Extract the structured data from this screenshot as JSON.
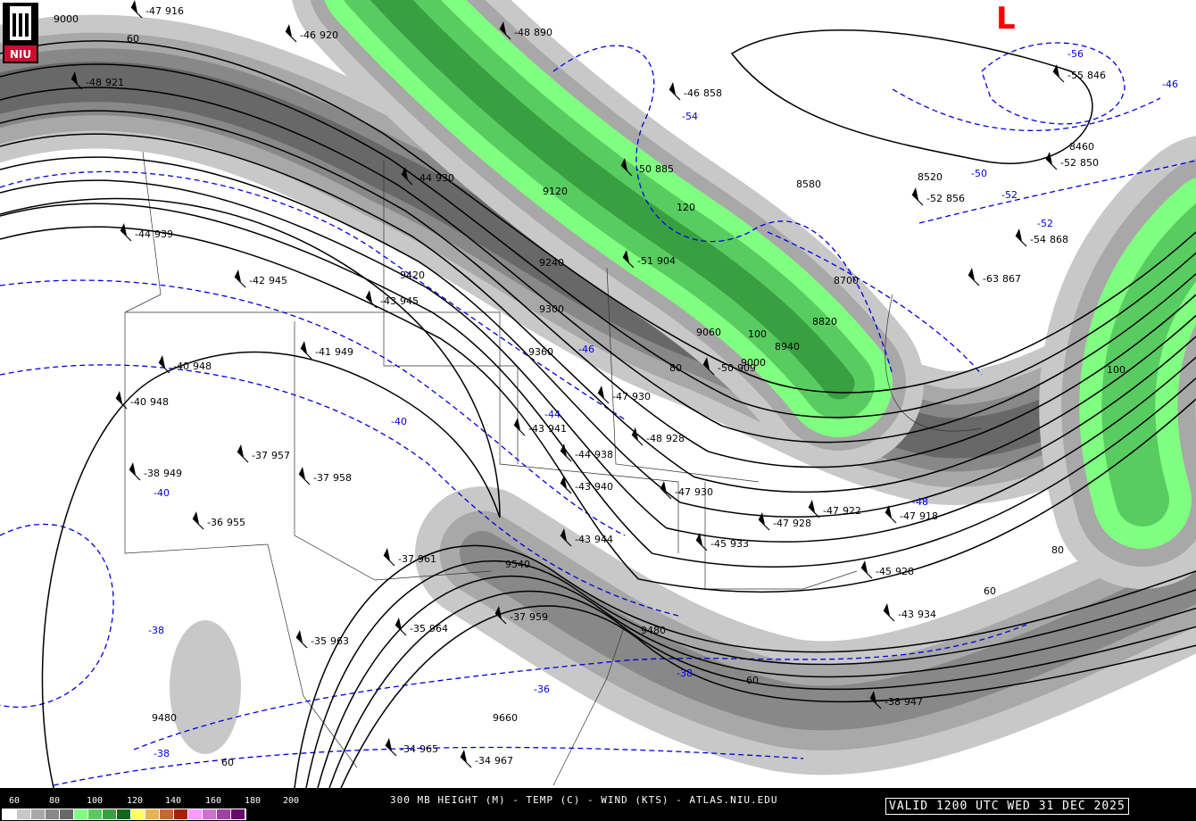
{
  "title": "300 MB HEIGHT (M) - TEMP (C) - WIND (KTS) - ATLAS.NIU.EDU",
  "valid": "VALID 1200 UTC WED 31 DEC 2025",
  "logo": {
    "text": "NIU"
  },
  "low_marker": "L",
  "legend": {
    "labels": [
      "60",
      "80",
      "100",
      "120",
      "140",
      "160",
      "180",
      "200"
    ],
    "colors": [
      "#ffffff",
      "#c8c8c8",
      "#a8a8a8",
      "#888888",
      "#686868",
      "#80ff80",
      "#58cc60",
      "#38a040",
      "#106818",
      "#ffff68",
      "#e8b450",
      "#c86830",
      "#a82008",
      "#ff98ff",
      "#d070d0",
      "#a040a0",
      "#680868"
    ]
  },
  "colors": {
    "height_contour": "#000000",
    "temp_contour": "#0000dd",
    "low": "#ff0000"
  },
  "height_labels": [
    "9000",
    "9120",
    "9240",
    "9300",
    "9360",
    "9420",
    "9480",
    "9540",
    "9660",
    "9480",
    "8520",
    "8460",
    "8580",
    "8700",
    "8820",
    "8940",
    "9060",
    "9000"
  ],
  "temp_labels": [
    "-36",
    "-38",
    "-38",
    "-40",
    "-40",
    "-44",
    "-46",
    "-48",
    "-50",
    "-52",
    "-54",
    "-56",
    "-46",
    "-52",
    "-38"
  ],
  "isotach_labels": [
    "60",
    "80",
    "100",
    "120",
    "100",
    "80",
    "60",
    "60",
    "60"
  ],
  "stations": [
    {
      "t": "-47",
      "h": "916"
    },
    {
      "t": "-46",
      "h": "920"
    },
    {
      "t": "-48",
      "h": "921"
    },
    {
      "t": "-48",
      "h": "890"
    },
    {
      "t": "-46",
      "h": "858"
    },
    {
      "t": "-44",
      "h": "930"
    },
    {
      "t": "-44",
      "h": "939"
    },
    {
      "t": "-42",
      "h": "945"
    },
    {
      "t": "-43",
      "h": "945"
    },
    {
      "t": "-41",
      "h": "949"
    },
    {
      "t": "-40",
      "h": "948"
    },
    {
      "t": "-40",
      "h": "948"
    },
    {
      "t": "-37",
      "h": "957"
    },
    {
      "t": "-37",
      "h": "958"
    },
    {
      "t": "-38",
      "h": "949"
    },
    {
      "t": "-36",
      "h": "955"
    },
    {
      "t": "-37",
      "h": "961"
    },
    {
      "t": "-35",
      "h": "963"
    },
    {
      "t": "-35",
      "h": "964"
    },
    {
      "t": "-37",
      "h": "959"
    },
    {
      "t": "-34",
      "h": "965"
    },
    {
      "t": "-34",
      "h": "967"
    },
    {
      "t": "-43",
      "h": "941"
    },
    {
      "t": "-44",
      "h": "938"
    },
    {
      "t": "-43",
      "h": "940"
    },
    {
      "t": "-43",
      "h": "944"
    },
    {
      "t": "-47",
      "h": "930"
    },
    {
      "t": "-48",
      "h": "928"
    },
    {
      "t": "-47",
      "h": "930"
    },
    {
      "t": "-50",
      "h": "909"
    },
    {
      "t": "-51",
      "h": "904"
    },
    {
      "t": "-50",
      "h": "885"
    },
    {
      "t": "-45",
      "h": "933"
    },
    {
      "t": "-47",
      "h": "928"
    },
    {
      "t": "-47",
      "h": "922"
    },
    {
      "t": "-47",
      "h": "918"
    },
    {
      "t": "-45",
      "h": "928"
    },
    {
      "t": "-43",
      "h": "934"
    },
    {
      "t": "-38",
      "h": "947"
    },
    {
      "t": "-52",
      "h": "856"
    },
    {
      "t": "-52",
      "h": "850"
    },
    {
      "t": "-55",
      "h": "846"
    },
    {
      "t": "-63",
      "h": "867"
    },
    {
      "t": "-54",
      "h": "868"
    }
  ]
}
